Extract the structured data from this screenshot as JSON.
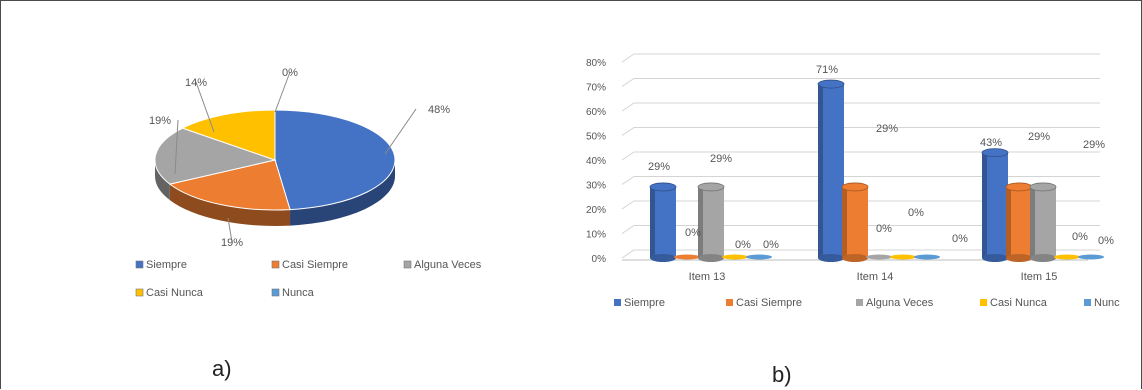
{
  "panels": {
    "a": "a)",
    "b": "b)"
  },
  "colors": {
    "Siempre": "#4472C4",
    "Casi Siempre": "#ED7D31",
    "Alguna Veces": "#A5A5A5",
    "Casi Nunca": "#FFC000",
    "Nunca": "#5B9BD5"
  },
  "chart_data": [
    {
      "type": "pie",
      "title": "",
      "categories": [
        "Siempre",
        "Casi Siempre",
        "Alguna Veces",
        "Casi Nunca",
        "Nunca"
      ],
      "values": [
        48,
        19,
        19,
        14,
        0
      ],
      "labels": [
        "48%",
        "19%",
        "19%",
        "14%",
        "0%"
      ],
      "legend": [
        "Siempre",
        "Casi Siempre",
        "Alguna Veces",
        "Casi Nunca",
        "Nunca"
      ],
      "legend_position": "bottom",
      "style": "3d"
    },
    {
      "type": "bar",
      "title": "",
      "categories": [
        "Item 13",
        "Item 14",
        "Item 15"
      ],
      "series": [
        {
          "name": "Siempre",
          "values": [
            29,
            71,
            43
          ]
        },
        {
          "name": "Casi Siempre",
          "values": [
            0,
            29,
            29
          ]
        },
        {
          "name": "Alguna Veces",
          "values": [
            29,
            0,
            29
          ]
        },
        {
          "name": "Casi Nunca",
          "values": [
            0,
            0,
            0
          ]
        },
        {
          "name": "Nunca",
          "values": [
            0,
            0,
            0
          ]
        }
      ],
      "data_labels": [
        [
          "29%",
          "0%",
          "29%",
          "0%",
          "0%"
        ],
        [
          "71%",
          "29%",
          "0%",
          "0%",
          "0%"
        ],
        [
          "43%",
          "29%",
          "29%",
          "0%",
          "0%"
        ]
      ],
      "ylim": [
        0,
        80
      ],
      "yticks": [
        "0%",
        "10%",
        "20%",
        "30%",
        "40%",
        "50%",
        "60%",
        "70%",
        "80%"
      ],
      "grid": true,
      "legend_position": "bottom",
      "style": "3d-cylinder"
    }
  ]
}
